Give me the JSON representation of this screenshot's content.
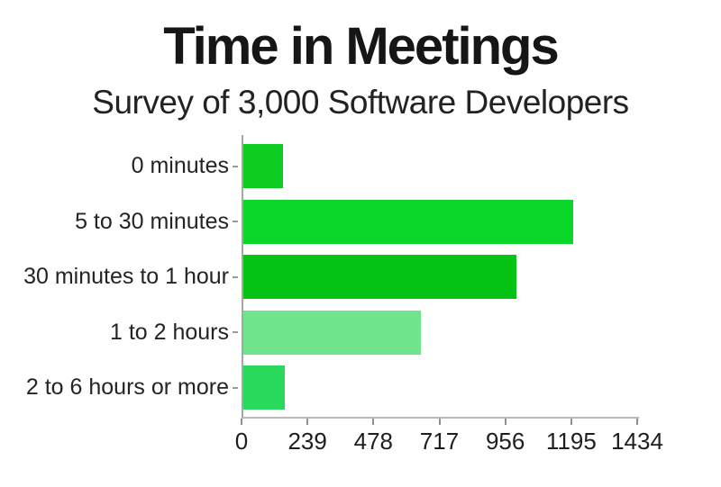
{
  "page": {
    "background": "#ffffff"
  },
  "chart_data": {
    "type": "bar",
    "orientation": "horizontal",
    "title": "Time in Meetings",
    "subtitle": "Survey of 3,000 Software Developers",
    "categories": [
      "0 minutes",
      "5 to 30 minutes",
      "30 minutes to 1 hour",
      "1 to 2 hours",
      "2 to 6 hours or more"
    ],
    "values": [
      145,
      1195,
      990,
      645,
      150
    ],
    "bar_colors": [
      "#0ecd20",
      "#0bd72b",
      "#05c413",
      "#6fe48c",
      "#28d95c"
    ],
    "xlabel": "",
    "ylabel": "",
    "xlim": [
      0,
      1434
    ],
    "xticks": [
      0,
      239,
      478,
      717,
      956,
      1195,
      1434
    ],
    "grid": false,
    "legend": "none",
    "axis_line_color": "#b0b0b0",
    "tick_mark_color": "#8f8f8f",
    "label_text_color": "#242424",
    "title_text_color": "#161616"
  }
}
